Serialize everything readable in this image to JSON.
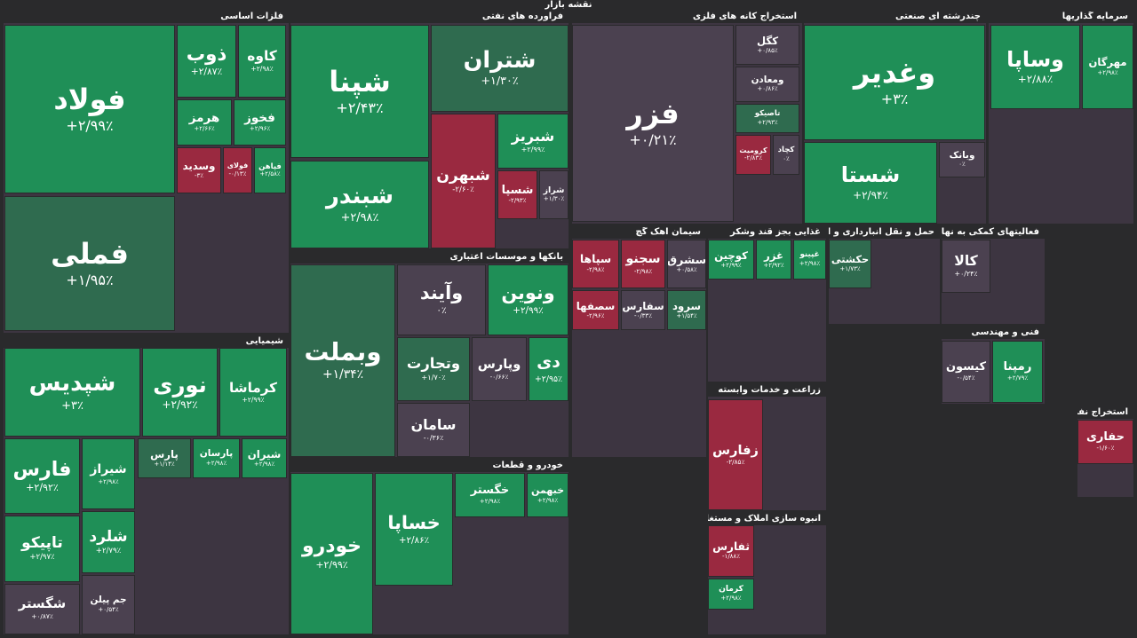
{
  "title": "نقشه بازار",
  "sectors": [
    {
      "name": "فلزات اساسی",
      "tiles": [
        {
          "name": "فولاد",
          "change": "+۲/۹۹٪"
        },
        {
          "name": "فملی",
          "change": "+۱/۹۵٪"
        },
        {
          "name": "ذوب",
          "change": "+۲/۸۷٪"
        },
        {
          "name": "کاوه",
          "change": "+۲/۹۸٪"
        },
        {
          "name": "هرمز",
          "change": "+۲/۶۶٪"
        },
        {
          "name": "فخوز",
          "change": "+۲/۹۶٪"
        },
        {
          "name": "وسدید",
          "change": "-۳٪"
        },
        {
          "name": "فولای",
          "change": "-۰/۱۳٪"
        },
        {
          "name": "فپاهن",
          "change": "+۲/۵۸٪"
        }
      ]
    },
    {
      "name": "شیمیایی",
      "tiles": [
        {
          "name": "شپدیس",
          "change": "+۳٪"
        },
        {
          "name": "نوری",
          "change": "+۲/۹۲٪"
        },
        {
          "name": "کرماشا",
          "change": "+۲/۹۹٪"
        },
        {
          "name": "فارس",
          "change": "+۲/۹۲٪"
        },
        {
          "name": "تاپیکو",
          "change": "+۲/۹۷٪"
        },
        {
          "name": "شگستر",
          "change": "+۰/۸۷٪"
        },
        {
          "name": "شیراز",
          "change": "+۲/۹۸٪"
        },
        {
          "name": "شلرد",
          "change": "+۲/۷۹٪"
        },
        {
          "name": "جم پیلن",
          "change": "+۰/۵۴٪"
        },
        {
          "name": "پارس",
          "change": "+۱/۱۴٪"
        },
        {
          "name": "پارسان",
          "change": "+۲/۹۸٪"
        },
        {
          "name": "شیران",
          "change": "+۲/۹۸٪"
        }
      ]
    },
    {
      "name": "فرآورده های نفتی",
      "tiles": [
        {
          "name": "شپنا",
          "change": "+۲/۴۳٪"
        },
        {
          "name": "شبندر",
          "change": "+۲/۹۸٪"
        },
        {
          "name": "شتران",
          "change": "+۱/۳۰٪"
        },
        {
          "name": "شبهرن",
          "change": "-۲/۶۰٪"
        },
        {
          "name": "شبریز",
          "change": "+۲/۹۹٪"
        },
        {
          "name": "شسپا",
          "change": "-۲/۹۳٪"
        },
        {
          "name": "شراز",
          "change": "+۱/۳۰٪"
        }
      ]
    },
    {
      "name": "بانکها و موسسات اعتباری",
      "tiles": [
        {
          "name": "وبملت",
          "change": "+۱/۳۴٪"
        },
        {
          "name": "وآیند",
          "change": "۰٪"
        },
        {
          "name": "ونوین",
          "change": "+۲/۹۹٪"
        },
        {
          "name": "وتجارت",
          "change": "+۱/۷۰٪"
        },
        {
          "name": "وپارس",
          "change": "-۰/۶۶٪"
        },
        {
          "name": "دی",
          "change": "+۲/۹۵٪"
        },
        {
          "name": "سامان",
          "change": "-۰/۳۶٪"
        }
      ]
    },
    {
      "name": "خودرو و قطعات",
      "tiles": [
        {
          "name": "خودرو",
          "change": "+۲/۹۹٪"
        },
        {
          "name": "خساپا",
          "change": "+۲/۸۶٪"
        },
        {
          "name": "خگستر",
          "change": "+۲/۹۸٪"
        },
        {
          "name": "خبهمن",
          "change": "+۲/۹۸٪"
        }
      ]
    },
    {
      "name": "استخراج کانه های فلزی",
      "tiles": [
        {
          "name": "فزر",
          "change": "+۰/۲۱٪"
        },
        {
          "name": "کگل",
          "change": "+۰/۸۵٪"
        },
        {
          "name": "ومعادن",
          "change": "+۰/۸۶٪"
        },
        {
          "name": "تاصیکو",
          "change": "+۲/۹۳٪"
        },
        {
          "name": "کرومیت",
          "change": "-۲/۸۳٪"
        },
        {
          "name": "کچاد",
          "change": "۰٪"
        }
      ]
    },
    {
      "name": "چندرشته ای صنعتی",
      "tiles": [
        {
          "name": "وغدیر",
          "change": "+۳٪"
        },
        {
          "name": "شستا",
          "change": "+۲/۹۴٪"
        },
        {
          "name": "وبانک",
          "change": "۰٪"
        }
      ]
    },
    {
      "name": "سرمایه گذاریها",
      "tiles": [
        {
          "name": "وساپا",
          "change": "+۲/۸۸٪"
        },
        {
          "name": "مهرگان",
          "change": "+۲/۹۸٪"
        }
      ]
    },
    {
      "name": "سیمان آهک گچ",
      "tiles": [
        {
          "name": "سپاها",
          "change": "-۲/۹۸٪"
        },
        {
          "name": "سجنو",
          "change": "-۲/۹۸٪"
        },
        {
          "name": "سشرق",
          "change": "+۰/۵۸٪"
        },
        {
          "name": "سصفها",
          "change": "-۲/۹۶٪"
        },
        {
          "name": "سفارس",
          "change": "-۰/۳۳٪"
        },
        {
          "name": "سرود",
          "change": "+۱/۵۴٪"
        }
      ]
    },
    {
      "name": "غذایی بجز قند وشکر",
      "tiles": [
        {
          "name": "کوچین",
          "change": "+۲/۹۹٪"
        },
        {
          "name": "غزر",
          "change": "+۲/۹۲٪"
        },
        {
          "name": "غپینو",
          "change": "+۲/۹۸٪"
        }
      ]
    },
    {
      "name": "زراعت و خدمات وابسته",
      "tiles": [
        {
          "name": "زفارس",
          "change": "-۲/۸۵٪"
        }
      ]
    },
    {
      "name": "انبوه سازی املاک و مستغلات",
      "tiles": [
        {
          "name": "ثفارس",
          "change": "-۱/۸۸٪"
        },
        {
          "name": "کرمان",
          "change": "+۲/۹۸٪"
        }
      ]
    },
    {
      "name": "حمل و نقل انبارداری و ارتباطات",
      "tiles": [
        {
          "name": "حکشتی",
          "change": "+۱/۷۳٪"
        }
      ]
    },
    {
      "name": "فعالیتهای کمکی به نهاد های",
      "tiles": [
        {
          "name": "کالا",
          "change": "+۰/۲۴٪"
        }
      ]
    },
    {
      "name": "فنی و مهندسی",
      "tiles": [
        {
          "name": "کیسون",
          "change": "-۰/۵۴٪"
        },
        {
          "name": "رمپنا",
          "change": "+۲/۷۹٪"
        }
      ]
    },
    {
      "name": "استخراج نفت گاز",
      "tiles": [
        {
          "name": "حفاری",
          "change": "-۱/۶۰٪"
        }
      ]
    }
  ]
}
